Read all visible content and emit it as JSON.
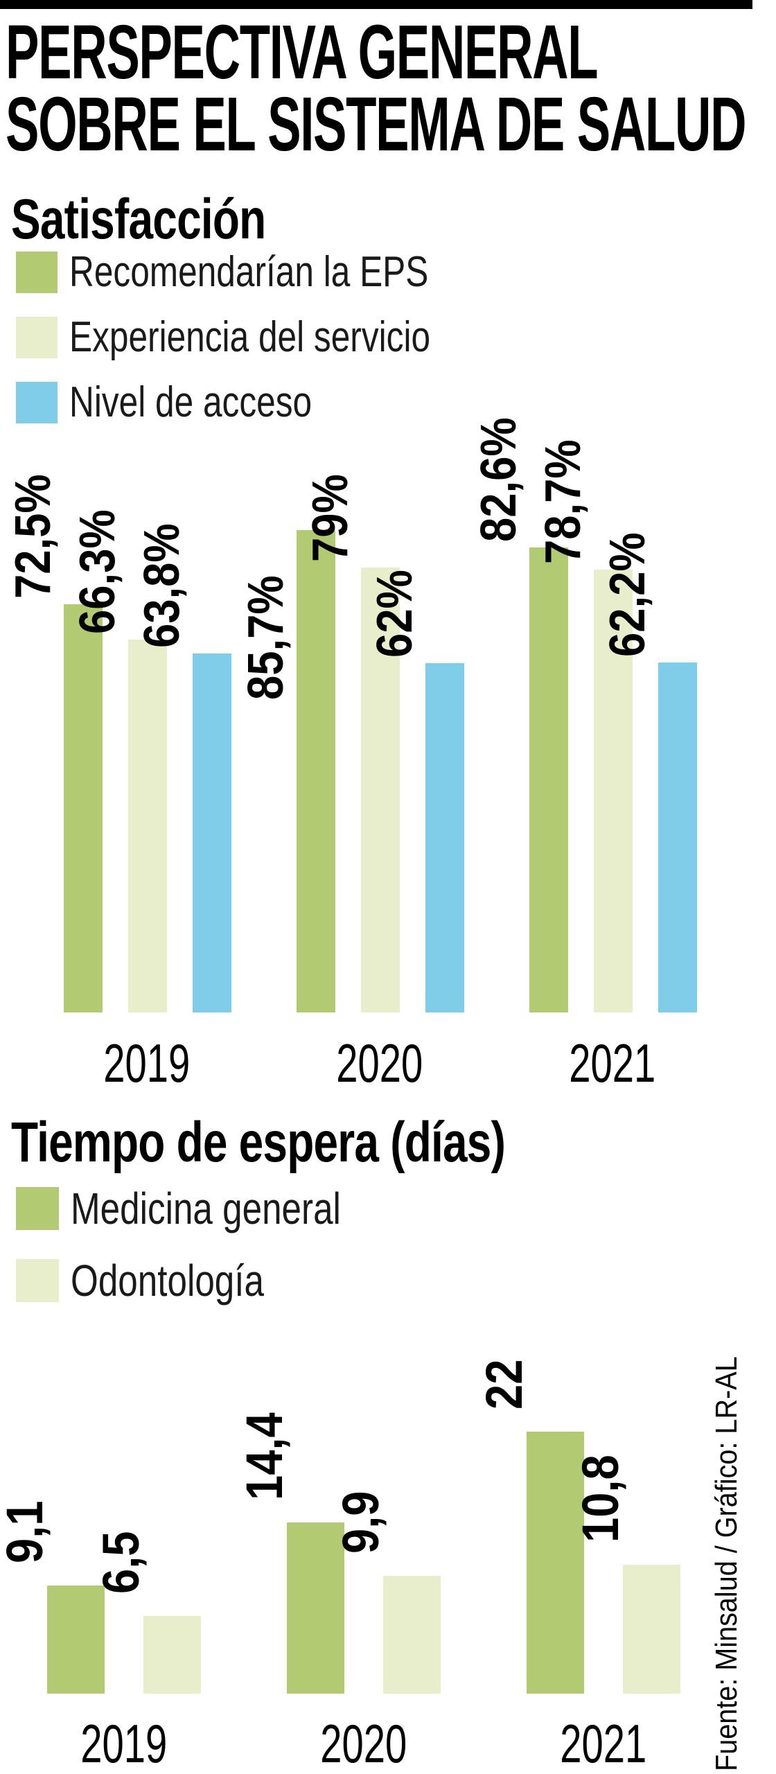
{
  "title": {
    "line1": "PERSPECTIVA GENERAL",
    "line2": "SOBRE EL SISTEMA DE SALUD"
  },
  "source": "Fuente: Minsalud / Gráfico: LR-AL",
  "colors": {
    "green": "#b2ca72",
    "light_green": "#e8eecb",
    "blue": "#7fcde8"
  },
  "chart_data": [
    {
      "type": "bar",
      "title": "Satisfacción",
      "categories": [
        "2019",
        "2020",
        "2021"
      ],
      "series": [
        {
          "name": "Recomendarían la EPS",
          "color_key": "green",
          "values": [
            72.5,
            85.7,
            82.6
          ],
          "labels": [
            "72,5%",
            "85,7%",
            "82,6%"
          ]
        },
        {
          "name": "Experiencia del servicio",
          "color_key": "light_green",
          "values": [
            66.3,
            79.0,
            78.7
          ],
          "labels": [
            "66,3%",
            "79%",
            "78,7%"
          ]
        },
        {
          "name": "Nivel de acceso",
          "color_key": "blue",
          "values": [
            63.8,
            62.0,
            62.2
          ],
          "labels": [
            "63,8%",
            "62%",
            "62,2%"
          ]
        }
      ],
      "ylim": [
        0,
        85.7
      ],
      "grid": false,
      "legend_position": "top-left",
      "xlabel": "",
      "ylabel": ""
    },
    {
      "type": "bar",
      "title": "Tiempo de espera (días)",
      "categories": [
        "2019",
        "2020",
        "2021"
      ],
      "series": [
        {
          "name": "Medicina general",
          "color_key": "green",
          "values": [
            9.1,
            14.4,
            22.0
          ],
          "labels": [
            "9,1",
            "14,4",
            "22"
          ]
        },
        {
          "name": "Odontología",
          "color_key": "light_green",
          "values": [
            6.5,
            9.9,
            10.8
          ],
          "labels": [
            "6,5",
            "9,9",
            "10,8"
          ]
        }
      ],
      "ylim": [
        0,
        22
      ],
      "grid": false,
      "legend_position": "top-left",
      "xlabel": "",
      "ylabel": ""
    }
  ]
}
